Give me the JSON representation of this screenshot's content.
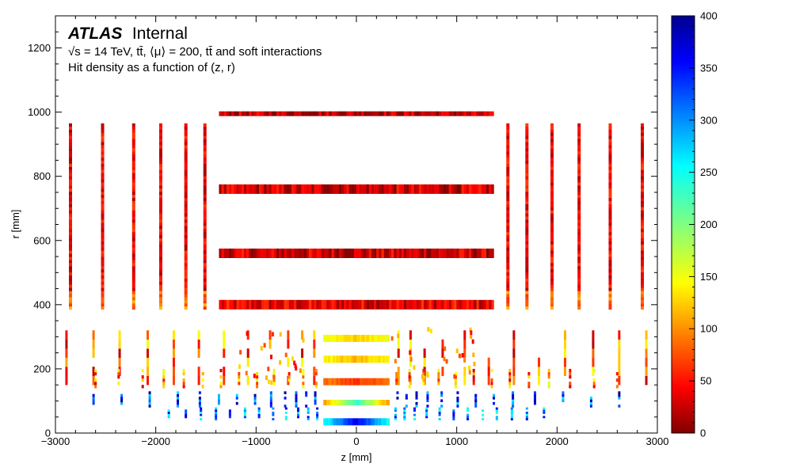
{
  "chart_data": {
    "type": "heatmap",
    "title": {
      "atlas": "ATLAS",
      "status": "Internal",
      "line1": "√s = 14 TeV, tt̄, ⟨μ⟩ = 200, tt̄ and soft interactions",
      "line2": "Hit density as a function of (z, r)"
    },
    "xlabel": "z [mm]",
    "ylabel": "r [mm]",
    "xlim": [
      -3000,
      3000
    ],
    "ylim": [
      0,
      1300
    ],
    "xticks": [
      -3000,
      -2000,
      -1000,
      0,
      1000,
      2000,
      3000
    ],
    "xtick_labels": [
      "−3000",
      "−2000",
      "−1000",
      "0",
      "1000",
      "2000",
      "3000"
    ],
    "yticks": [
      0,
      200,
      400,
      600,
      800,
      1000,
      1200
    ],
    "ytick_labels": [
      "0",
      "200",
      "400",
      "600",
      "800",
      "1000",
      "1200"
    ],
    "colorbar": {
      "range": [
        0,
        400
      ],
      "ticks": [
        0,
        50,
        100,
        150,
        200,
        250,
        300,
        350,
        400
      ],
      "tick_labels": [
        "0",
        "50",
        "100",
        "150",
        "200",
        "250",
        "300",
        "350",
        "400"
      ],
      "colormap": "jet_reversed",
      "low_color": "#800000",
      "high_color": "#00008f"
    },
    "detector_regions": {
      "strip_barrel_layers": [
        {
          "r": 400,
          "z_range": [
            -1370,
            1370
          ],
          "density": 40
        },
        {
          "r": 560,
          "z_range": [
            -1370,
            1370
          ],
          "density": 30
        },
        {
          "r": 760,
          "z_range": [
            -1370,
            1370
          ],
          "density": 30
        },
        {
          "r": 995,
          "z_range": [
            -1370,
            1370
          ],
          "density": 25
        }
      ],
      "strip_endcap_disks": {
        "z": [
          -2850,
          -2530,
          -2220,
          -1950,
          -1700,
          -1510,
          1510,
          1700,
          1950,
          2220,
          2530,
          2850
        ],
        "r_range": [
          385,
          965
        ],
        "density": 40
      },
      "pixel_barrel_layers": [
        {
          "r": 35,
          "z_range": [
            -330,
            330
          ],
          "density": 360
        },
        {
          "r": 95,
          "z_range": [
            -330,
            330
          ],
          "density": 230
        },
        {
          "r": 160,
          "z_range": [
            -330,
            330
          ],
          "density": 70
        },
        {
          "r": 230,
          "z_range": [
            -330,
            330
          ],
          "density": 120
        },
        {
          "r": 295,
          "z_range": [
            -330,
            330
          ],
          "density": 130
        }
      ],
      "pixel_endcap_rings": "many short radial segments at 0 < r < 320 mm for 330 < |z| < 2900 mm"
    }
  }
}
